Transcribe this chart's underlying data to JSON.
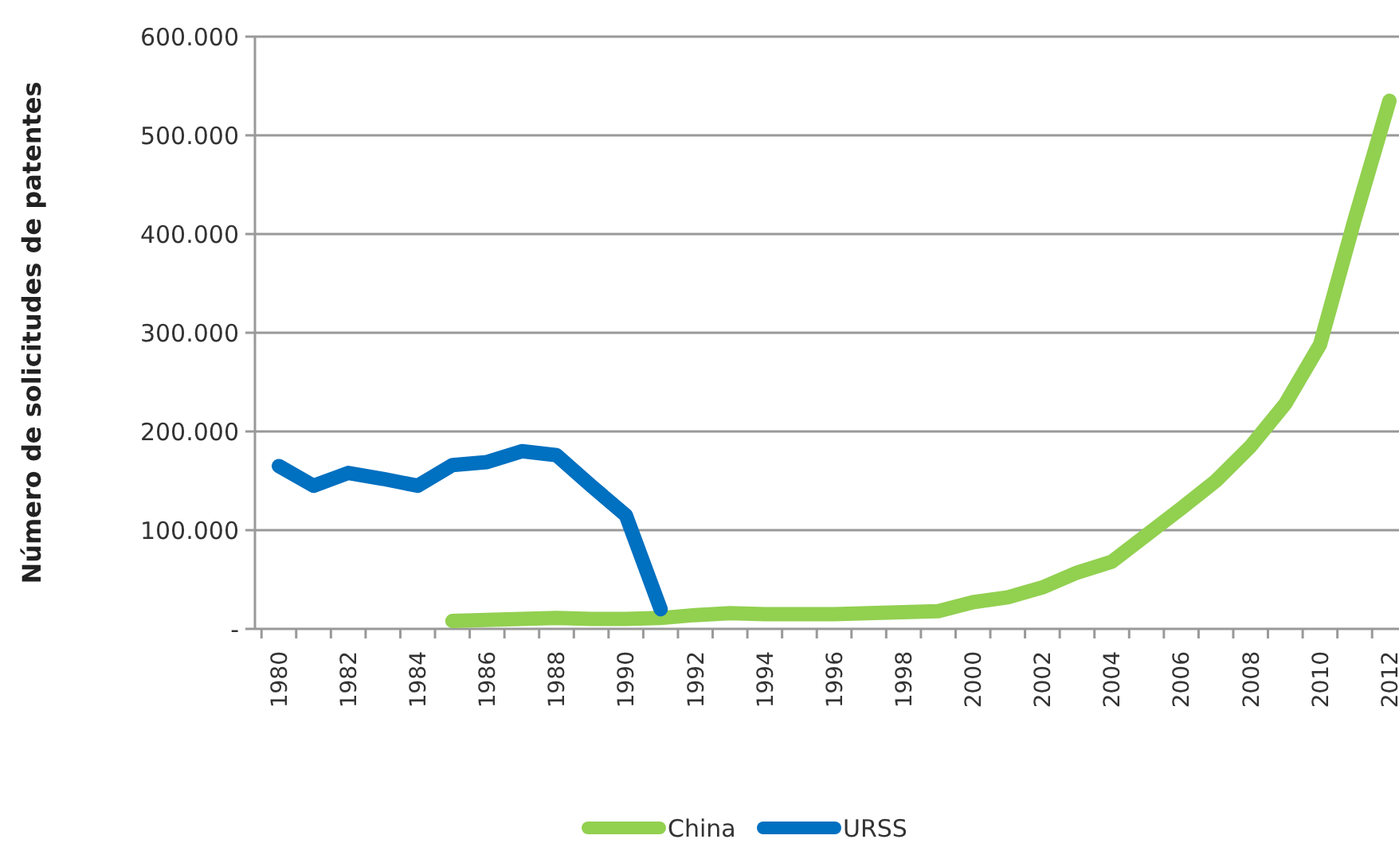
{
  "chart_data": {
    "type": "line",
    "ylabel": "Número de solicitudes de patentes",
    "categories": [
      "1980",
      null,
      "1982",
      null,
      "1984",
      null,
      "1986",
      null,
      "1988",
      null,
      "1990",
      null,
      "1992",
      null,
      "1994",
      null,
      "1996",
      null,
      "1998",
      null,
      "2000",
      null,
      "2002",
      null,
      "2004",
      null,
      "2006",
      null,
      "2008",
      null,
      "2010",
      null,
      "2012"
    ],
    "series": [
      {
        "name": "China",
        "color": "#92d050",
        "values": [
          null,
          null,
          null,
          null,
          null,
          8000,
          9000,
          10000,
          11000,
          10000,
          10000,
          11000,
          14000,
          16000,
          15000,
          15000,
          15000,
          16000,
          17000,
          18000,
          27000,
          32000,
          42000,
          57000,
          68000,
          95000,
          122000,
          150000,
          185000,
          228000,
          288000,
          415000,
          535000
        ]
      },
      {
        "name": "URSS",
        "color": "#0070c0",
        "values": [
          165000,
          145000,
          158000,
          152000,
          145000,
          166000,
          169000,
          180000,
          176000,
          145000,
          115000,
          20000,
          null,
          null,
          null,
          null,
          null,
          null,
          null,
          null,
          null,
          null,
          null,
          null,
          null,
          null,
          null,
          null,
          null,
          null,
          null,
          null,
          null
        ]
      }
    ],
    "ylim": [
      0,
      600000
    ],
    "yticks": [
      {
        "value": 0,
        "label": "-"
      },
      {
        "value": 100000,
        "label": "100.000"
      },
      {
        "value": 200000,
        "label": "200.000"
      },
      {
        "value": 300000,
        "label": "300.000"
      },
      {
        "value": 400000,
        "label": "400.000"
      },
      {
        "value": 500000,
        "label": "500.000"
      },
      {
        "value": 600000,
        "label": "600.000"
      }
    ],
    "grid": "y",
    "legend": "bottom",
    "line_style": "solid",
    "marker": "none"
  }
}
